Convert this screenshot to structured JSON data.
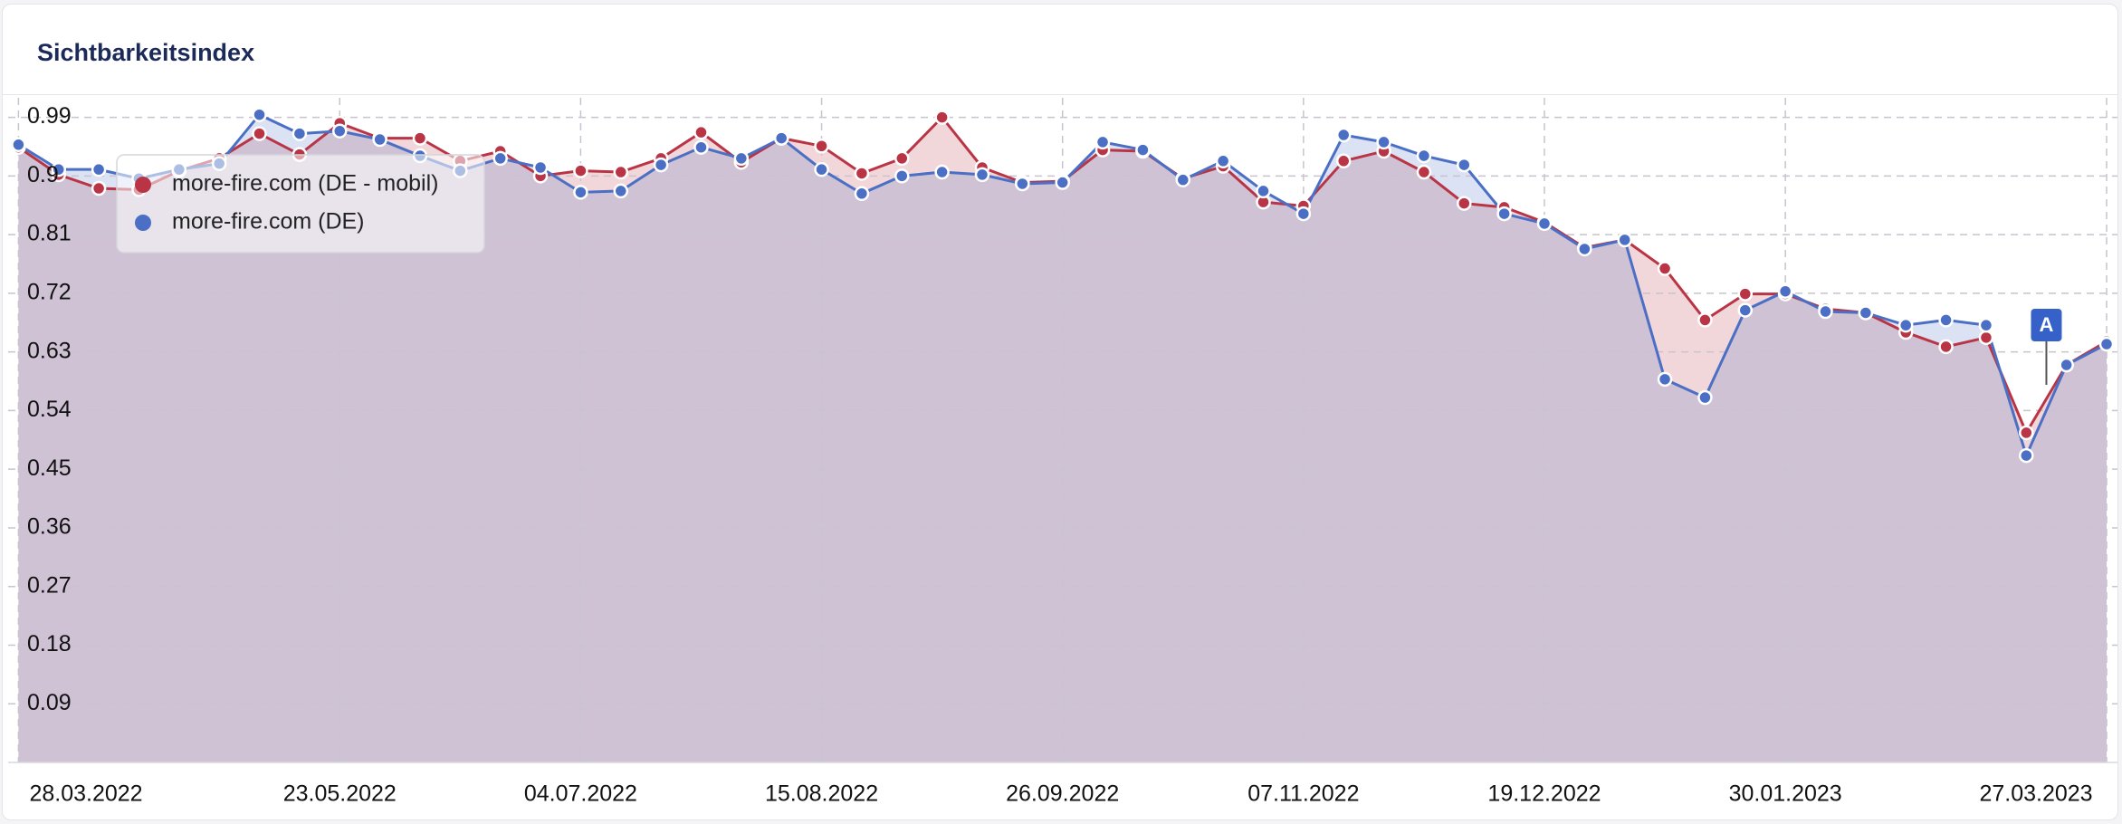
{
  "chart_data": {
    "type": "line",
    "title": "Sichtbarkeitsindex",
    "x": [
      "28.03.2022",
      "04.04.2022",
      "11.04.2022",
      "18.04.2022",
      "25.04.2022",
      "02.05.2022",
      "09.05.2022",
      "16.05.2022",
      "23.05.2022",
      "30.05.2022",
      "06.06.2022",
      "13.06.2022",
      "20.06.2022",
      "27.06.2022",
      "04.07.2022",
      "11.07.2022",
      "18.07.2022",
      "25.07.2022",
      "01.08.2022",
      "08.08.2022",
      "15.08.2022",
      "22.08.2022",
      "29.08.2022",
      "05.09.2022",
      "12.09.2022",
      "19.09.2022",
      "26.09.2022",
      "03.10.2022",
      "10.10.2022",
      "17.10.2022",
      "24.10.2022",
      "31.10.2022",
      "07.11.2022",
      "14.11.2022",
      "21.11.2022",
      "28.11.2022",
      "05.12.2022",
      "12.12.2022",
      "19.12.2022",
      "26.12.2022",
      "02.01.2023",
      "09.01.2023",
      "16.01.2023",
      "23.01.2023",
      "30.01.2023",
      "06.02.2023",
      "13.02.2023",
      "20.02.2023",
      "27.02.2023",
      "06.03.2023",
      "13.03.2023",
      "20.03.2023",
      "27.03.2023"
    ],
    "series": [
      {
        "name": "more-fire.com (DE - mobil)",
        "color": "#b93545",
        "values": [
          0.944,
          0.902,
          0.881,
          0.879,
          0.908,
          0.927,
          0.965,
          0.933,
          0.981,
          0.958,
          0.958,
          0.923,
          0.938,
          0.9,
          0.908,
          0.906,
          0.927,
          0.967,
          0.921,
          0.958,
          0.946,
          0.904,
          0.927,
          0.99,
          0.913,
          0.89,
          0.892,
          0.94,
          0.938,
          0.896,
          0.915,
          0.86,
          0.854,
          0.923,
          0.938,
          0.906,
          0.858,
          0.852,
          0.829,
          0.79,
          0.802,
          0.758,
          0.679,
          0.719,
          0.719,
          0.696,
          0.69,
          0.66,
          0.638,
          0.652,
          0.506,
          0.61,
          0.646
        ]
      },
      {
        "name": "more-fire.com (DE)",
        "color": "#4a6fc4",
        "values": [
          0.948,
          0.91,
          0.91,
          0.896,
          0.91,
          0.919,
          0.994,
          0.965,
          0.969,
          0.956,
          0.931,
          0.908,
          0.927,
          0.913,
          0.875,
          0.877,
          0.917,
          0.944,
          0.927,
          0.958,
          0.91,
          0.873,
          0.9,
          0.906,
          0.902,
          0.888,
          0.89,
          0.952,
          0.94,
          0.894,
          0.923,
          0.877,
          0.842,
          0.963,
          0.952,
          0.931,
          0.917,
          0.842,
          0.827,
          0.788,
          0.802,
          0.588,
          0.56,
          0.694,
          0.723,
          0.692,
          0.69,
          0.671,
          0.679,
          0.671,
          0.471,
          0.61,
          0.642
        ]
      }
    ],
    "ylim": [
      0,
      1.02
    ],
    "yticks": [
      0.09,
      0.18,
      0.27,
      0.36,
      0.45,
      0.54,
      0.63,
      0.72,
      0.81,
      0.9,
      0.99
    ],
    "xticks": [
      "28.03.2022",
      "23.05.2022",
      "04.07.2022",
      "15.08.2022",
      "26.09.2022",
      "07.11.2022",
      "19.12.2022",
      "30.01.2023",
      "27.03.2023"
    ],
    "yticks_labels": [
      "0.09",
      "0.18",
      "0.27",
      "0.36",
      "0.45",
      "0.54",
      "0.63",
      "0.72",
      "0.81",
      "0.9",
      "0.99"
    ],
    "grid": true,
    "legend": "upper-left",
    "annotations": [
      {
        "text": "A"
      }
    ]
  }
}
